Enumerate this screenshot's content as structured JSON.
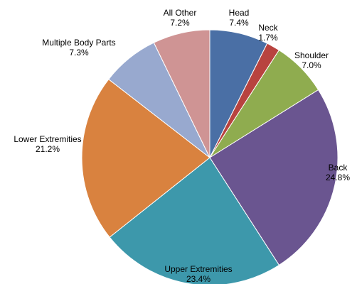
{
  "chart_data": {
    "type": "pie",
    "title": "",
    "slices": [
      {
        "label": "Head",
        "value": 7.4,
        "value_label": "7.4%",
        "color": "#4a6fa5"
      },
      {
        "label": "Neck",
        "value": 1.7,
        "value_label": "1.7%",
        "color": "#b8433f"
      },
      {
        "label": "Shoulder",
        "value": 7.0,
        "value_label": "7.0%",
        "color": "#8fac4f"
      },
      {
        "label": "Back",
        "value": 24.8,
        "value_label": "24.8%",
        "color": "#6a5590"
      },
      {
        "label": "Upper Extremities",
        "value": 23.4,
        "value_label": "23.4%",
        "color": "#3d98ab"
      },
      {
        "label": "Lower Extremities",
        "value": 21.2,
        "value_label": "21.2%",
        "color": "#d9823f"
      },
      {
        "label": "Multiple Body Parts",
        "value": 7.3,
        "value_label": "7.3%",
        "color": "#98a9cf"
      },
      {
        "label": "All Other",
        "value": 7.2,
        "value_label": "7.2%",
        "color": "#cf9494"
      }
    ]
  }
}
